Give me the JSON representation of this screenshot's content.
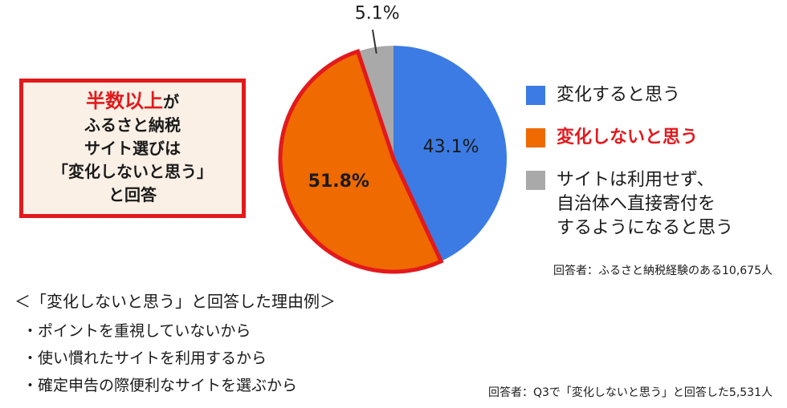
{
  "callout": {
    "highlight": "半数以上",
    "suffix": "が",
    "lines": [
      "ふるさと納税",
      "サイト選びは",
      "「変化しないと思う」",
      "と回答"
    ]
  },
  "chart_data": {
    "type": "pie",
    "start": "top",
    "direction": "clockwise",
    "slices": [
      {
        "label": "変化すると思う",
        "value": 43.1,
        "value_label": "43.1%",
        "color": "#3b7be3"
      },
      {
        "label": "変化しないと思う",
        "value": 51.8,
        "value_label": "51.8%",
        "color": "#ef6a00",
        "highlighted": true
      },
      {
        "label": "サイトは利用せず、自治体へ直接寄付をするようになると思う",
        "value": 5.1,
        "value_label": "5.1%",
        "color": "#a9a9a9"
      }
    ],
    "highlight_color": "#e3191c"
  },
  "legend": [
    {
      "lines": [
        "変化すると思う"
      ],
      "color": "#3b7be3"
    },
    {
      "lines": [
        "変化しないと思う"
      ],
      "color": "#ef6a00",
      "active": true
    },
    {
      "lines": [
        "サイトは利用せず、",
        "自治体へ直接寄付を",
        "するようになると思う"
      ],
      "color": "#a9a9a9"
    }
  ],
  "note1": "回答者：ふるさと納税経験のある10,675人",
  "reasons": {
    "title": "＜「変化しないと思う」と回答した理由例＞",
    "items": [
      "・ポイントを重視していないから",
      "・使い慣れたサイトを利用するから",
      "・確定申告の際便利なサイトを選ぶから"
    ]
  },
  "note2": "回答者：Q3で「変化しないと思う」と回答した5,531人"
}
